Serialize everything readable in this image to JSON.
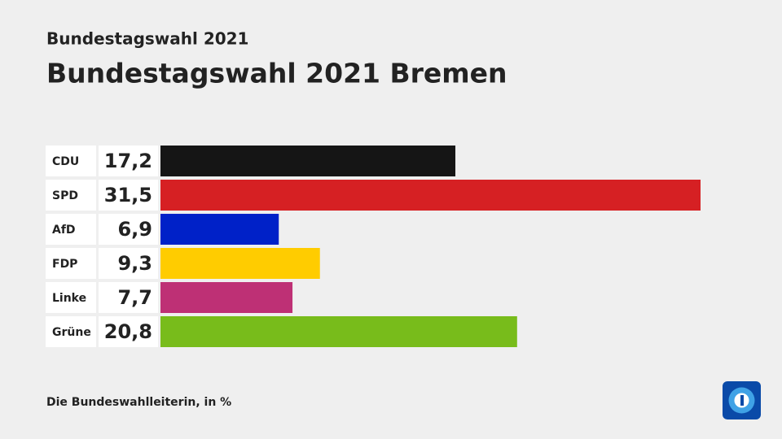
{
  "chart_data": {
    "type": "bar",
    "subtitle": "Bundestagswahl 2021",
    "title": "Bundestagswahl 2021 Bremen",
    "categories": [
      "CDU",
      "SPD",
      "AfD",
      "FDP",
      "Linke",
      "Grüne"
    ],
    "values": [
      17.2,
      31.5,
      6.9,
      9.3,
      7.7,
      20.8
    ],
    "value_labels": [
      "17,2",
      "31,5",
      "6,9",
      "9,3",
      "7,7",
      "20,8"
    ],
    "colors": [
      "#151515",
      "#d62023",
      "#0021c8",
      "#ffcc00",
      "#be3075",
      "#78bc1b"
    ],
    "source": "Die Bundeswahlleiterin, in %"
  }
}
